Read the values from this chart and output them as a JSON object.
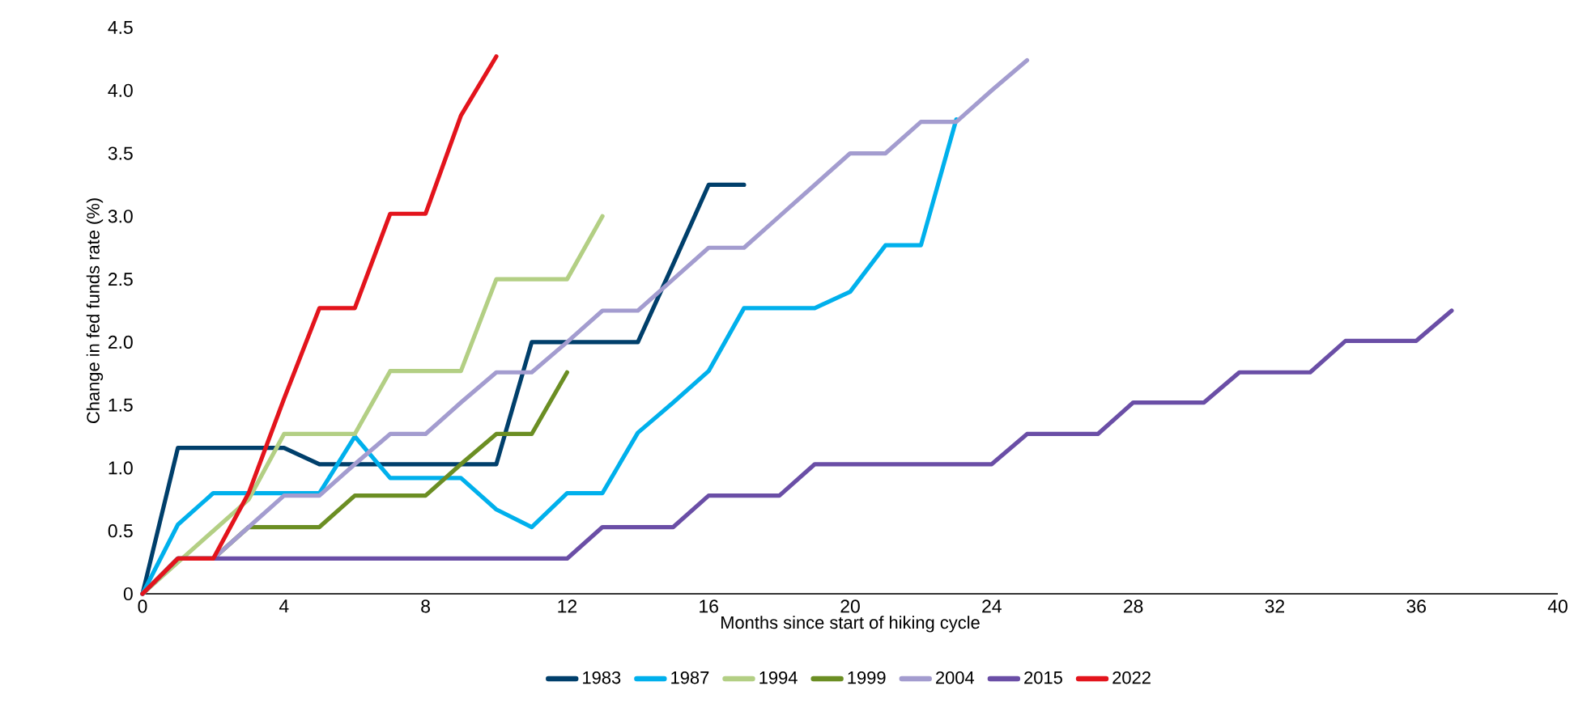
{
  "chart_data": {
    "type": "line",
    "xlabel": "Months since start of hiking cycle",
    "ylabel": "Change in fed funds rate (%)",
    "xlim": [
      0,
      40
    ],
    "xticks": [
      0,
      4,
      8,
      12,
      16,
      20,
      24,
      28,
      32,
      36,
      40
    ],
    "ylim": [
      0,
      4.5
    ],
    "yticks": [
      0,
      {
        "value": 0.5,
        "label": "0.5"
      },
      {
        "value": 1,
        "label": "1.0"
      },
      {
        "value": 1.5,
        "label": "1.5"
      },
      {
        "value": 2,
        "label": "2.0"
      },
      {
        "value": 2.5,
        "label": "2.5"
      },
      {
        "value": 3,
        "label": "3.0"
      },
      {
        "value": 3.5,
        "label": "3.5"
      },
      {
        "value": 4,
        "label": "4.0"
      },
      {
        "value": 4.5,
        "label": "4.5"
      }
    ],
    "legend": "bottom",
    "line_style": "solid",
    "series": [
      {
        "name": "1983",
        "color": "#003f6b",
        "x": [
          0,
          1,
          2,
          3,
          4,
          5,
          6,
          7,
          8,
          9,
          10,
          11,
          12,
          13,
          14,
          15,
          16,
          17
        ],
        "values": [
          0,
          1.16,
          1.16,
          1.16,
          1.16,
          1.03,
          1.03,
          1.03,
          1.03,
          1.03,
          1.03,
          2.0,
          2.0,
          2.0,
          2.0,
          2.62,
          3.25,
          3.25
        ]
      },
      {
        "name": "1987",
        "color": "#00b0ec",
        "x": [
          0,
          1,
          2,
          3,
          4,
          5,
          6,
          7,
          8,
          9,
          10,
          11,
          12,
          13,
          14,
          15,
          16,
          17,
          18,
          19,
          20,
          21,
          22,
          23
        ],
        "values": [
          0,
          0.55,
          0.8,
          0.8,
          0.8,
          0.8,
          1.25,
          0.92,
          0.92,
          0.92,
          0.67,
          0.53,
          0.8,
          0.8,
          1.28,
          1.52,
          1.77,
          2.27,
          2.27,
          2.27,
          2.4,
          2.77,
          2.77,
          3.77
        ]
      },
      {
        "name": "1994",
        "color": "#b3cf84",
        "x": [
          0,
          1,
          2,
          3,
          4,
          5,
          6,
          7,
          8,
          9,
          10,
          11,
          12,
          13
        ],
        "values": [
          0,
          0.25,
          0.5,
          0.75,
          1.27,
          1.27,
          1.27,
          1.77,
          1.77,
          1.77,
          2.5,
          2.5,
          2.5,
          3.0
        ]
      },
      {
        "name": "1999",
        "color": "#6b8e23",
        "x": [
          0,
          1,
          2,
          3,
          4,
          5,
          6,
          7,
          8,
          9,
          10,
          11,
          12
        ],
        "values": [
          0,
          0.28,
          0.28,
          0.53,
          0.53,
          0.53,
          0.78,
          0.78,
          0.78,
          1.03,
          1.27,
          1.27,
          1.76
        ]
      },
      {
        "name": "2004",
        "color": "#a39ccf",
        "x": [
          0,
          1,
          2,
          3,
          4,
          5,
          6,
          7,
          8,
          9,
          10,
          11,
          12,
          13,
          14,
          15,
          16,
          17,
          18,
          19,
          20,
          21,
          22,
          23,
          24,
          25
        ],
        "values": [
          0,
          0.28,
          0.28,
          0.53,
          0.78,
          0.78,
          1.03,
          1.27,
          1.27,
          1.52,
          1.76,
          1.76,
          2.0,
          2.25,
          2.25,
          2.5,
          2.75,
          2.75,
          3.0,
          3.25,
          3.5,
          3.5,
          3.75,
          3.75,
          4.0,
          4.24
        ]
      },
      {
        "name": "2015",
        "color": "#6a4ea6",
        "x": [
          0,
          1,
          2,
          3,
          4,
          5,
          6,
          7,
          8,
          9,
          10,
          11,
          12,
          13,
          14,
          15,
          16,
          17,
          18,
          19,
          20,
          21,
          22,
          23,
          24,
          25,
          26,
          27,
          28,
          29,
          30,
          31,
          32,
          33,
          34,
          35,
          36,
          37
        ],
        "values": [
          0,
          0.28,
          0.28,
          0.28,
          0.28,
          0.28,
          0.28,
          0.28,
          0.28,
          0.28,
          0.28,
          0.28,
          0.28,
          0.53,
          0.53,
          0.53,
          0.78,
          0.78,
          0.78,
          1.03,
          1.03,
          1.03,
          1.03,
          1.03,
          1.03,
          1.27,
          1.27,
          1.27,
          1.52,
          1.52,
          1.52,
          1.76,
          1.76,
          1.76,
          2.01,
          2.01,
          2.01,
          2.25
        ]
      },
      {
        "name": "2022",
        "color": "#e3141c",
        "x": [
          0,
          1,
          2,
          3,
          4,
          5,
          6,
          7,
          8,
          9,
          10
        ],
        "values": [
          0,
          0.28,
          0.28,
          0.8,
          1.55,
          2.27,
          2.27,
          3.02,
          3.02,
          3.8,
          4.27
        ]
      }
    ]
  }
}
